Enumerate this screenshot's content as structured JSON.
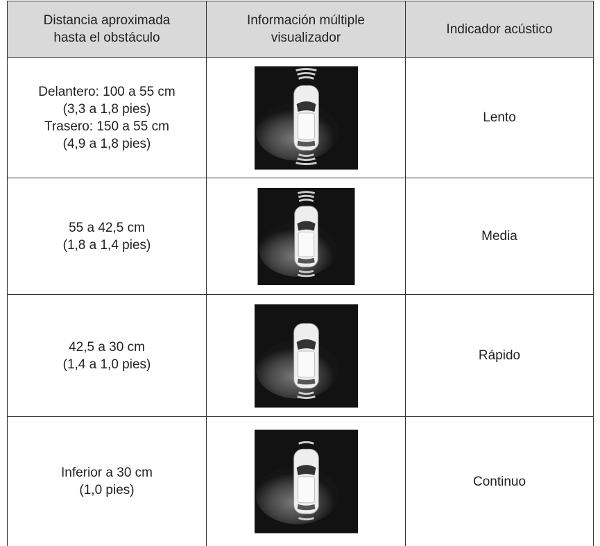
{
  "table": {
    "header": [
      [
        "Distancia aproximada",
        "hasta el obstáculo"
      ],
      [
        "Información múltiple",
        "visualizador"
      ],
      [
        "Indicador acústico"
      ]
    ],
    "rows": [
      {
        "distance": [
          "Delantero: 100 a 55 cm",
          "(3,3 a 1,8 pies)",
          "Trasero: 150 a 55 cm",
          "(4,9 a 1,8 pies)"
        ],
        "sound": "Lento"
      },
      {
        "distance": [
          "55 a 42,5 cm",
          "(1,8 a 1,4 pies)"
        ],
        "sound": "Media"
      },
      {
        "distance": [
          "42,5 a 30 cm",
          "(1,4 a 1,0 pies)"
        ],
        "sound": "Rápido"
      },
      {
        "distance": [
          "Inferior a 30 cm",
          "(1,0 pies)"
        ],
        "sound": "Continuo"
      }
    ]
  }
}
